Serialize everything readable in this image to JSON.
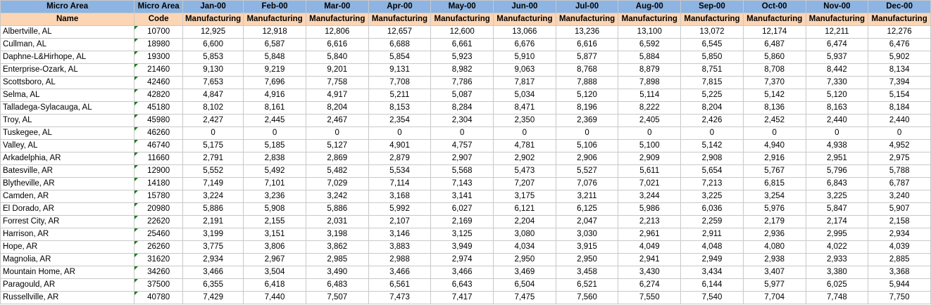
{
  "header_row1": [
    "Micro Area",
    "Micro Area",
    "Jan-00",
    "Feb-00",
    "Mar-00",
    "Apr-00",
    "May-00",
    "Jun-00",
    "Jul-00",
    "Aug-00",
    "Sep-00",
    "Oct-00",
    "Nov-00",
    "Dec-00"
  ],
  "header_row2": [
    "Name",
    "Code",
    "Manufacturing",
    "Manufacturing",
    "Manufacturing",
    "Manufacturing",
    "Manufacturing",
    "Manufacturing",
    "Manufacturing",
    "Manufacturing",
    "Manufacturing",
    "Manufacturing",
    "Manufacturing",
    "Manufacturing"
  ],
  "rows": [
    [
      "Albertville, AL",
      "10700",
      "12,925",
      "12,918",
      "12,806",
      "12,657",
      "12,600",
      "13,066",
      "13,236",
      "13,100",
      "13,072",
      "12,174",
      "12,211",
      "12,276"
    ],
    [
      "Cullman, AL",
      "18980",
      "6,600",
      "6,587",
      "6,616",
      "6,688",
      "6,661",
      "6,676",
      "6,616",
      "6,592",
      "6,545",
      "6,487",
      "6,474",
      "6,476"
    ],
    [
      "Daphne-L&Hirhope, AL",
      "19300",
      "5,853",
      "5,848",
      "5,840",
      "5,854",
      "5,923",
      "5,910",
      "5,877",
      "5,884",
      "5,850",
      "5,860",
      "5,937",
      "5,902"
    ],
    [
      "Enterprise-Ozark, AL",
      "21460",
      "9,130",
      "9,219",
      "9,201",
      "9,131",
      "8,982",
      "9,063",
      "8,768",
      "8,879",
      "8,751",
      "8,708",
      "8,442",
      "8,134"
    ],
    [
      "Scottsboro, AL",
      "42460",
      "7,653",
      "7,696",
      "7,758",
      "7,708",
      "7,786",
      "7,817",
      "7,888",
      "7,898",
      "7,815",
      "7,370",
      "7,330",
      "7,394"
    ],
    [
      "Selma, AL",
      "42820",
      "4,847",
      "4,916",
      "4,917",
      "5,211",
      "5,087",
      "5,034",
      "5,120",
      "5,114",
      "5,225",
      "5,142",
      "5,120",
      "5,154"
    ],
    [
      "Talladega-Sylacauga, AL",
      "45180",
      "8,102",
      "8,161",
      "8,204",
      "8,153",
      "8,284",
      "8,471",
      "8,196",
      "8,222",
      "8,204",
      "8,136",
      "8,163",
      "8,184"
    ],
    [
      "Troy, AL",
      "45980",
      "2,427",
      "2,445",
      "2,467",
      "2,354",
      "2,304",
      "2,350",
      "2,369",
      "2,405",
      "2,426",
      "2,452",
      "2,440",
      "2,440"
    ],
    [
      "Tuskegee, AL",
      "46260",
      "0",
      "0",
      "0",
      "0",
      "0",
      "0",
      "0",
      "0",
      "0",
      "0",
      "0",
      "0"
    ],
    [
      "Valley, AL",
      "46740",
      "5,175",
      "5,185",
      "5,127",
      "4,901",
      "4,757",
      "4,781",
      "5,106",
      "5,100",
      "5,142",
      "4,940",
      "4,938",
      "4,952"
    ],
    [
      "Arkadelphia, AR",
      "11660",
      "2,791",
      "2,838",
      "2,869",
      "2,879",
      "2,907",
      "2,902",
      "2,906",
      "2,909",
      "2,908",
      "2,916",
      "2,951",
      "2,975"
    ],
    [
      "Batesville, AR",
      "12900",
      "5,552",
      "5,492",
      "5,482",
      "5,534",
      "5,568",
      "5,473",
      "5,527",
      "5,611",
      "5,654",
      "5,767",
      "5,796",
      "5,788"
    ],
    [
      "Blytheville, AR",
      "14180",
      "7,149",
      "7,101",
      "7,029",
      "7,114",
      "7,143",
      "7,207",
      "7,076",
      "7,021",
      "7,213",
      "6,815",
      "6,843",
      "6,787"
    ],
    [
      "Camden, AR",
      "15780",
      "3,224",
      "3,236",
      "3,242",
      "3,168",
      "3,141",
      "3,175",
      "3,211",
      "3,244",
      "3,225",
      "3,254",
      "3,225",
      "3,240"
    ],
    [
      "El Dorado, AR",
      "20980",
      "5,886",
      "5,908",
      "5,886",
      "5,992",
      "6,027",
      "6,121",
      "6,125",
      "5,986",
      "6,036",
      "5,976",
      "5,847",
      "5,907"
    ],
    [
      "Forrest City, AR",
      "22620",
      "2,191",
      "2,155",
      "2,031",
      "2,107",
      "2,169",
      "2,204",
      "2,047",
      "2,213",
      "2,259",
      "2,179",
      "2,174",
      "2,158"
    ],
    [
      "Harrison, AR",
      "25460",
      "3,199",
      "3,151",
      "3,198",
      "3,146",
      "3,125",
      "3,080",
      "3,030",
      "2,961",
      "2,911",
      "2,936",
      "2,995",
      "2,934"
    ],
    [
      "Hope, AR",
      "26260",
      "3,775",
      "3,806",
      "3,862",
      "3,883",
      "3,949",
      "4,034",
      "3,915",
      "4,049",
      "4,048",
      "4,080",
      "4,022",
      "4,039"
    ],
    [
      "Magnolia, AR",
      "31620",
      "2,934",
      "2,967",
      "2,985",
      "2,988",
      "2,974",
      "2,950",
      "2,950",
      "2,941",
      "2,949",
      "2,938",
      "2,933",
      "2,885"
    ],
    [
      "Mountain Home, AR",
      "34260",
      "3,466",
      "3,504",
      "3,490",
      "3,466",
      "3,466",
      "3,469",
      "3,458",
      "3,430",
      "3,434",
      "3,407",
      "3,380",
      "3,368"
    ],
    [
      "Paragould, AR",
      "37500",
      "6,355",
      "6,418",
      "6,483",
      "6,561",
      "6,643",
      "6,504",
      "6,521",
      "6,274",
      "6,144",
      "5,977",
      "6,025",
      "5,944"
    ],
    [
      "Russellville, AR",
      "40780",
      "7,429",
      "7,440",
      "7,507",
      "7,473",
      "7,417",
      "7,475",
      "7,560",
      "7,550",
      "7,540",
      "7,704",
      "7,748",
      "7,750"
    ]
  ],
  "colors": {
    "header_row1_bg": "#8db4e2",
    "header_row2_bg": "#fcd5b4",
    "gridline": "#c9c9c9",
    "error_marker": "#1e7b1e"
  }
}
